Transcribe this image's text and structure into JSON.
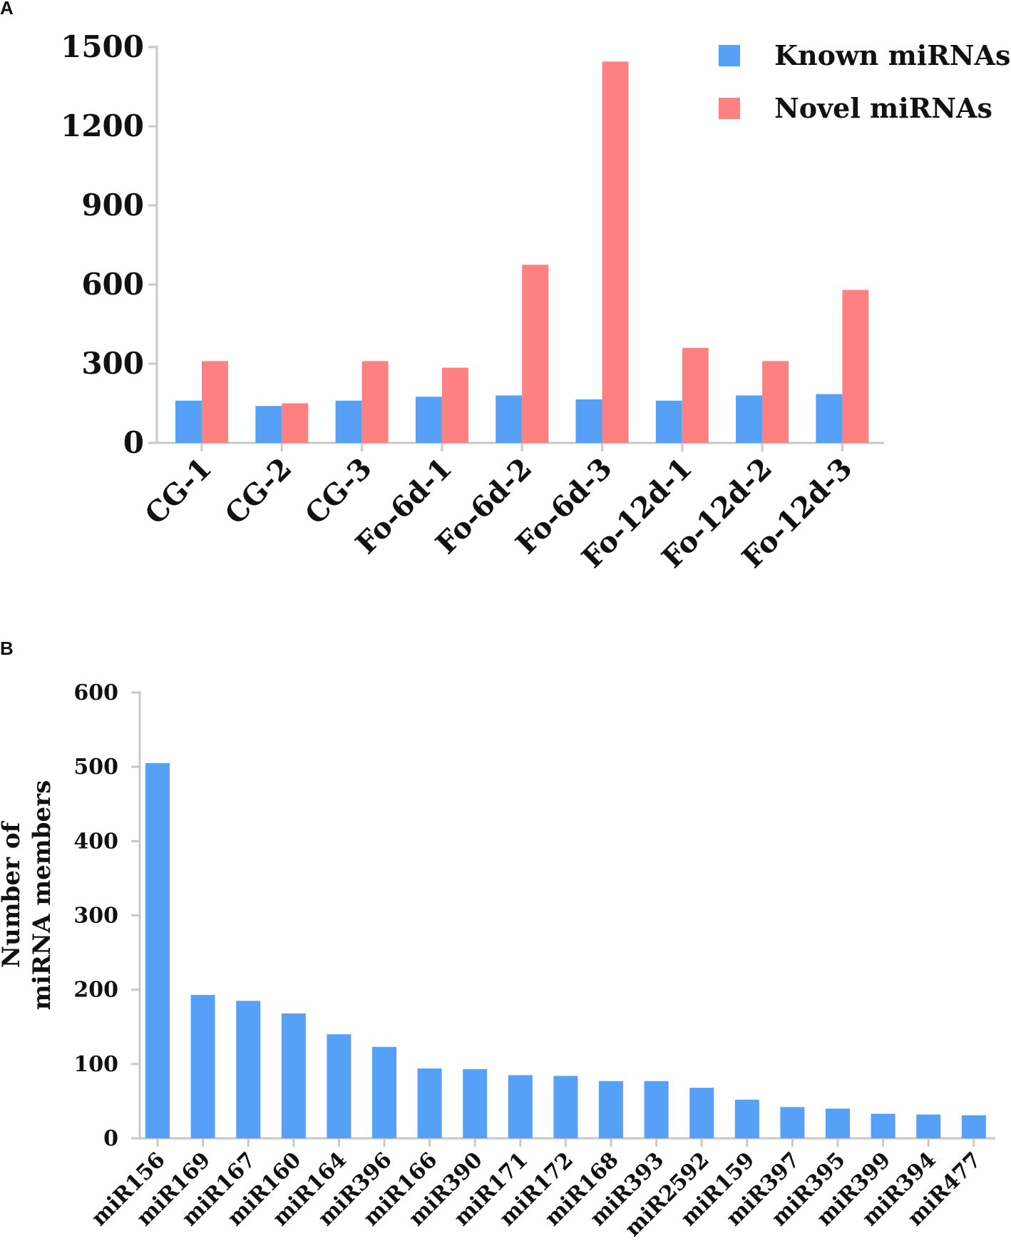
{
  "chart_data": [
    {
      "panel": "A",
      "type": "bar",
      "title": "",
      "xlabel": "",
      "ylabel": "",
      "ylim": [
        0,
        1500
      ],
      "yticks": [
        0,
        300,
        600,
        900,
        1200,
        1500
      ],
      "legend_position": "top-right",
      "categories": [
        "CG-1",
        "CG-2",
        "CG-3",
        "Fo-6d-1",
        "Fo-6d-2",
        "Fo-6d-3",
        "Fo-12d-1",
        "Fo-12d-2",
        "Fo-12d-3"
      ],
      "series": [
        {
          "name": "Known miRNAs",
          "color": "#56a0f7",
          "values": [
            160,
            140,
            160,
            175,
            180,
            165,
            160,
            180,
            185
          ]
        },
        {
          "name": "Novel miRNAs",
          "color": "#fd8181",
          "values": [
            310,
            150,
            310,
            285,
            675,
            1445,
            360,
            310,
            580
          ]
        }
      ]
    },
    {
      "panel": "B",
      "type": "bar",
      "title": "",
      "xlabel": "",
      "ylabel": [
        "Number of",
        "miRNA members"
      ],
      "ylim": [
        0,
        600
      ],
      "yticks": [
        0,
        100,
        200,
        300,
        400,
        500,
        600
      ],
      "categories": [
        "miR156",
        "miR169",
        "miR167",
        "miR160",
        "miR164",
        "miR396",
        "miR166",
        "miR390",
        "miR171",
        "miR172",
        "miR168",
        "miR393",
        "miR2592",
        "miR159",
        "miR397",
        "miR395",
        "miR399",
        "miR394",
        "miR477"
      ],
      "series": [
        {
          "name": "miRNA members",
          "color": "#56a0f7",
          "values": [
            505,
            193,
            185,
            168,
            140,
            123,
            94,
            93,
            85,
            84,
            77,
            77,
            68,
            52,
            42,
            40,
            33,
            32,
            31
          ]
        }
      ]
    }
  ]
}
